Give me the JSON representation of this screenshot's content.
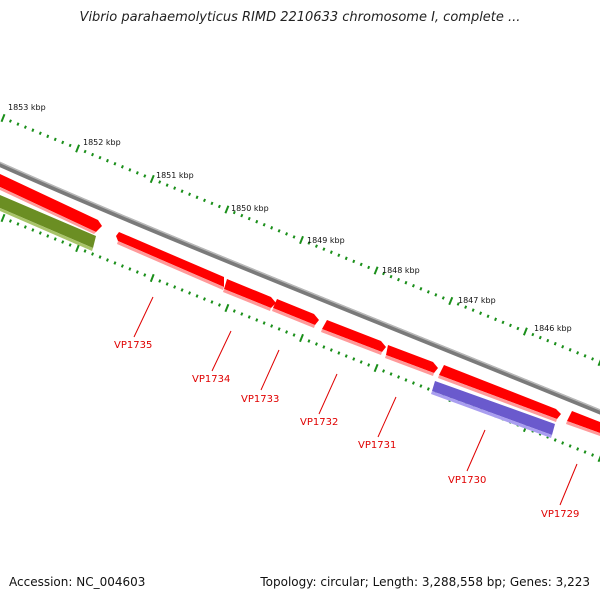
{
  "title": "Vibrio parahaemolyticus RIMD 2210633 chromosome I, complete ...",
  "footer": {
    "accession": "Accession: NC_004603",
    "summary": "Topology: circular; Length: 3,288,558 bp; Genes: 3,223"
  },
  "colors": {
    "backbone": "#7a7a7a",
    "gene_forward": "#ff0000",
    "gene_reverse": "#ff0000",
    "gene_green": "#6b8e23",
    "gene_blue": "#6a5acd",
    "tick": "#1a8f1a",
    "label": "#e00000"
  },
  "kbp_labels": [
    "1853 kbp",
    "1852 kbp",
    "1851 kbp",
    "1850 kbp",
    "1849 kbp",
    "1848 kbp",
    "1847 kbp",
    "1846 kbp"
  ],
  "gene_labels": [
    "VP1735",
    "VP1734",
    "VP1733",
    "VP1732",
    "VP1731",
    "VP1730",
    "VP1729"
  ]
}
